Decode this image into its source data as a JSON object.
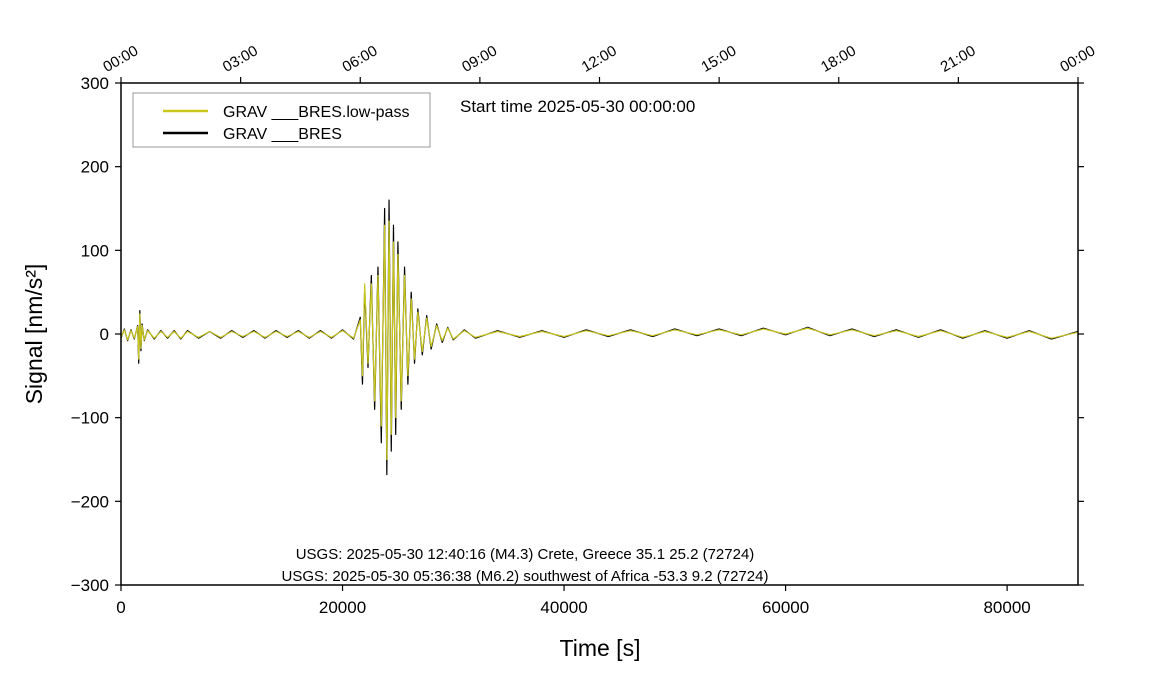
{
  "chart_data": {
    "type": "line",
    "xlabel": "Time [s]",
    "ylabel": "Signal [nm/s²]",
    "annotations": [
      "Start time 2025-05-30 00:00:00",
      "USGS: 2025-05-30 12:40:16 (M4.3) Crete, Greece 35.1 25.2 (72724)",
      "USGS: 2025-05-30 05:36:38 (M6.2) southwest of Africa -53.3 9.2 (72724)"
    ],
    "legend": "upper left",
    "xlim": [
      0,
      86400
    ],
    "ylim": [
      -300,
      300
    ],
    "xticks": [
      0,
      20000,
      40000,
      60000,
      80000
    ],
    "yticks": [
      {
        "value": -300,
        "label": "−300"
      },
      {
        "value": -200,
        "label": "−200"
      },
      {
        "value": -100,
        "label": "−100"
      },
      0,
      100,
      200,
      300
    ],
    "x2ticks": [
      {
        "value": 0,
        "label": "00:00"
      },
      {
        "value": 10800,
        "label": "03:00"
      },
      {
        "value": 21600,
        "label": "06:00"
      },
      {
        "value": 32400,
        "label": "09:00"
      },
      {
        "value": 43200,
        "label": "12:00"
      },
      {
        "value": 54000,
        "label": "15:00"
      },
      {
        "value": 64800,
        "label": "18:00"
      },
      {
        "value": 75600,
        "label": "21:00"
      },
      {
        "value": 86400,
        "label": "00:00"
      }
    ],
    "x": [
      0,
      300,
      600,
      900,
      1200,
      1500,
      1600,
      1700,
      1800,
      1900,
      2100,
      2400,
      3000,
      3600,
      4200,
      4800,
      5400,
      6000,
      7000,
      8000,
      9000,
      10000,
      11000,
      12000,
      13000,
      14000,
      15000,
      16000,
      17000,
      18000,
      19000,
      20000,
      21000,
      21600,
      21800,
      22000,
      22300,
      22600,
      22900,
      23200,
      23500,
      23800,
      24000,
      24200,
      24400,
      24600,
      24800,
      25000,
      25300,
      25600,
      25900,
      26200,
      26500,
      26800,
      27200,
      27600,
      28000,
      28500,
      29000,
      29500,
      30000,
      31000,
      32000,
      34000,
      36000,
      38000,
      40000,
      42000,
      44000,
      46000,
      48000,
      50000,
      52000,
      54000,
      56000,
      58000,
      60000,
      62000,
      64000,
      66000,
      68000,
      70000,
      72000,
      74000,
      76000,
      78000,
      80000,
      82000,
      84000,
      86400
    ],
    "series": [
      {
        "name": "GRAV ___BRES.low-pass",
        "color": "#c9c61c",
        "values": [
          -4,
          5,
          -7,
          4,
          -5,
          9,
          -30,
          24,
          -17,
          10,
          -7,
          4,
          -5,
          3,
          -4,
          3,
          -5,
          3,
          -4,
          3,
          -4,
          3,
          -3,
          3,
          -4,
          3,
          -3,
          3,
          -4,
          3,
          -4,
          4,
          -5,
          17,
          -50,
          60,
          -35,
          60,
          -80,
          70,
          -110,
          130,
          -150,
          135,
          -120,
          110,
          -100,
          95,
          -80,
          70,
          -50,
          42,
          -30,
          26,
          -21,
          19,
          -15,
          10,
          -8,
          7,
          -6,
          4,
          -4,
          3,
          -3,
          3,
          -3,
          4,
          -2,
          4,
          -2,
          5,
          -1,
          5,
          -1,
          6,
          0,
          7,
          -1,
          5,
          -2,
          4,
          -3,
          4,
          -4,
          3,
          -4,
          3,
          -5,
          2
        ]
      },
      {
        "name": "GRAV ___BRES",
        "color": "#000000",
        "values": [
          -5,
          6,
          -8,
          5,
          -6,
          10,
          -35,
          28,
          -20,
          12,
          -8,
          5,
          -6,
          4,
          -5,
          4,
          -6,
          4,
          -5,
          3,
          -5,
          4,
          -4,
          4,
          -5,
          4,
          -4,
          4,
          -5,
          4,
          -5,
          5,
          -6,
          20,
          -60,
          55,
          -40,
          70,
          -90,
          80,
          -130,
          150,
          -168,
          160,
          -140,
          130,
          -120,
          110,
          -90,
          80,
          -60,
          50,
          -35,
          30,
          -25,
          22,
          -18,
          12,
          -10,
          8,
          -7,
          5,
          -5,
          4,
          -4,
          4,
          -4,
          5,
          -3,
          5,
          -3,
          6,
          -2,
          6,
          -2,
          7,
          -1,
          8,
          -2,
          6,
          -3,
          5,
          -4,
          5,
          -5,
          4,
          -5,
          4,
          -6,
          3
        ]
      }
    ]
  }
}
